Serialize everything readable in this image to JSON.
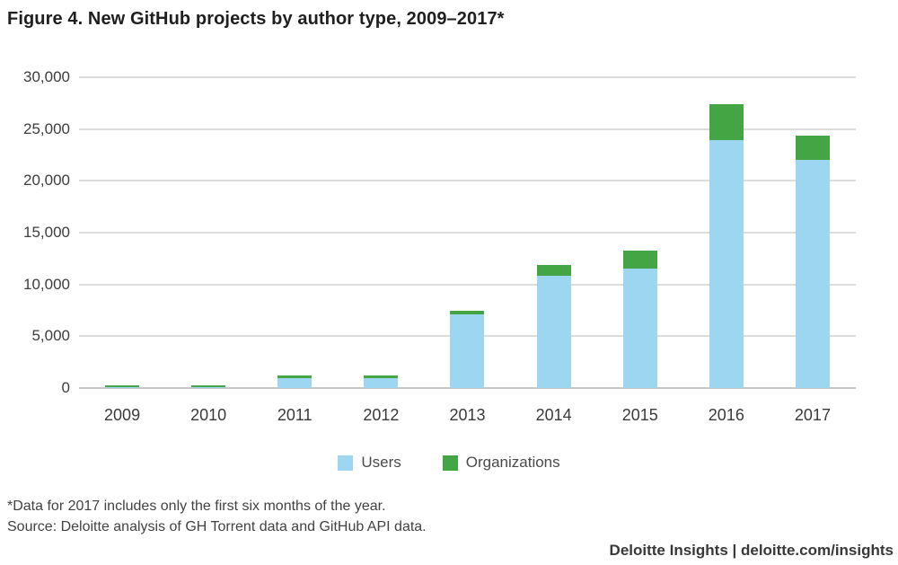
{
  "title": "Figure 4. New GitHub projects by author type, 2009–2017*",
  "chart_data": {
    "type": "bar",
    "stacked": true,
    "title": "Figure 4. New GitHub projects by author type, 2009–2017*",
    "categories": [
      "2009",
      "2010",
      "2011",
      "2012",
      "2013",
      "2014",
      "2015",
      "2016",
      "2017"
    ],
    "series": [
      {
        "name": "Users",
        "color": "#9cd6f1",
        "values": [
          100,
          100,
          950,
          950,
          7100,
          10800,
          11500,
          23900,
          22000
        ]
      },
      {
        "name": "Organizations",
        "color": "#43a543",
        "values": [
          150,
          150,
          250,
          300,
          400,
          1100,
          1800,
          3500,
          2400
        ]
      }
    ],
    "xlabel": "",
    "ylabel": "",
    "ylim": [
      0,
      30000
    ],
    "ytick_interval": 5000,
    "ytick_labels": [
      "0",
      "5,000",
      "10,000",
      "15,000",
      "20,000",
      "25,000",
      "30,000"
    ],
    "grid": true,
    "legend_position": "bottom"
  },
  "footnotes": {
    "line1": "*Data for 2017 includes only the first six months of the year.",
    "line2": "Source: Deloitte analysis of GH Torrent data and GitHub API data."
  },
  "branding": "Deloitte Insights | deloitte.com/insights",
  "colors": {
    "users": "#9cd6f1",
    "organizations": "#43a543",
    "gridline": "#dcdcdc",
    "axis_line": "#c6c6c6"
  }
}
